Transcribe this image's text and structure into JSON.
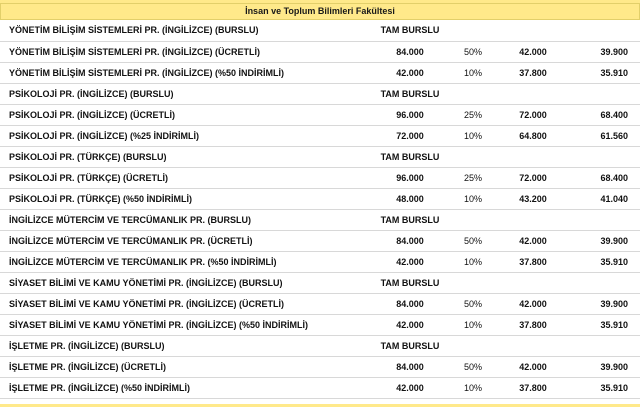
{
  "header": {
    "title": "İnsan ve Toplum Bilimleri Fakültesi"
  },
  "rows": [
    {
      "name": "YÖNETİM BİLİŞİM SİSTEMLERİ PR. (İNGİLİZCE) (BURSLU)",
      "price": "TAM BURSLU",
      "percent": "",
      "price1": "",
      "price2": ""
    },
    {
      "name": "YÖNETİM BİLİŞİM SİSTEMLERİ PR. (İNGİLİZCE) (ÜCRETLİ)",
      "price": "84.000",
      "percent": "50%",
      "price1": "42.000",
      "price2": "39.900"
    },
    {
      "name": "YÖNETİM BİLİŞİM SİSTEMLERİ PR. (İNGİLİZCE) (%50 İNDİRİMLİ)",
      "price": "42.000",
      "percent": "10%",
      "price1": "37.800",
      "price2": "35.910"
    },
    {
      "name": "PSİKOLOJİ PR. (İNGİLİZCE) (BURSLU)",
      "price": "TAM BURSLU",
      "percent": "",
      "price1": "",
      "price2": ""
    },
    {
      "name": "PSİKOLOJİ PR. (İNGİLİZCE) (ÜCRETLİ)",
      "price": "96.000",
      "percent": "25%",
      "price1": "72.000",
      "price2": "68.400"
    },
    {
      "name": "PSİKOLOJİ PR. (İNGİLİZCE) (%25 İNDİRİMLİ)",
      "price": "72.000",
      "percent": "10%",
      "price1": "64.800",
      "price2": "61.560"
    },
    {
      "name": "PSİKOLOJİ PR. (TÜRKÇE) (BURSLU)",
      "price": "TAM BURSLU",
      "percent": "",
      "price1": "",
      "price2": ""
    },
    {
      "name": "PSİKOLOJİ PR. (TÜRKÇE) (ÜCRETLİ)",
      "price": "96.000",
      "percent": "25%",
      "price1": "72.000",
      "price2": "68.400"
    },
    {
      "name": "PSİKOLOJİ PR. (TÜRKÇE) (%50 İNDİRİMLİ)",
      "price": "48.000",
      "percent": "10%",
      "price1": "43.200",
      "price2": "41.040"
    },
    {
      "name": "İNGİLİZCE MÜTERCİM VE TERCÜMANLIK PR. (BURSLU)",
      "price": "TAM BURSLU",
      "percent": "",
      "price1": "",
      "price2": ""
    },
    {
      "name": "İNGİLİZCE MÜTERCİM VE TERCÜMANLIK PR. (ÜCRETLİ)",
      "price": "84.000",
      "percent": "50%",
      "price1": "42.000",
      "price2": "39.900"
    },
    {
      "name": "İNGİLİZCE MÜTERCİM VE TERCÜMANLIK PR. (%50 İNDİRİMLİ)",
      "price": "42.000",
      "percent": "10%",
      "price1": "37.800",
      "price2": "35.910"
    },
    {
      "name": "SİYASET BİLİMİ VE KAMU YÖNETİMİ PR. (İNGİLİZCE) (BURSLU)",
      "price": "TAM BURSLU",
      "percent": "",
      "price1": "",
      "price2": ""
    },
    {
      "name": "SİYASET BİLİMİ VE KAMU YÖNETİMİ PR. (İNGİLİZCE) (ÜCRETLİ)",
      "price": "84.000",
      "percent": "50%",
      "price1": "42.000",
      "price2": "39.900"
    },
    {
      "name": "SİYASET BİLİMİ VE KAMU YÖNETİMİ PR. (İNGİLİZCE) (%50 İNDİRİMLİ)",
      "price": "42.000",
      "percent": "10%",
      "price1": "37.800",
      "price2": "35.910"
    },
    {
      "name": "İŞLETME PR. (İNGİLİZCE) (BURSLU)",
      "price": "TAM BURSLU",
      "percent": "",
      "price1": "",
      "price2": ""
    },
    {
      "name": "İŞLETME PR. (İNGİLİZCE) (ÜCRETLİ)",
      "price": "84.000",
      "percent": "50%",
      "price1": "42.000",
      "price2": "39.900"
    },
    {
      "name": "İŞLETME PR. (İNGİLİZCE) (%50 İNDİRİMLİ)",
      "price": "42.000",
      "percent": "10%",
      "price1": "37.800",
      "price2": "35.910"
    }
  ]
}
